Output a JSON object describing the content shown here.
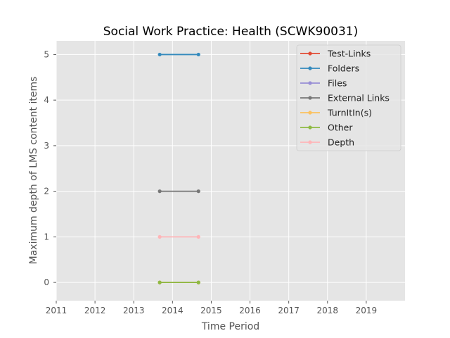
{
  "chart_data": {
    "type": "line",
    "title": "Social Work Practice: Health (SCWK90031)",
    "xlabel": "Time Period",
    "ylabel": "Maximum depth of LMS content items",
    "x_ticks": [
      "2011",
      "2012",
      "2013",
      "2014",
      "2015",
      "2016",
      "2017",
      "2018",
      "2019"
    ],
    "y_ticks": [
      "0",
      "1",
      "2",
      "3",
      "4",
      "5"
    ],
    "xlim": [
      2011.0,
      2020.0
    ],
    "ylim": [
      -0.4,
      5.3
    ],
    "grid": true,
    "legend_position": "top-right",
    "x": [
      2013.67,
      2014.67
    ],
    "series": [
      {
        "name": "Test-Links",
        "color": "#E24A33",
        "values": [
          0,
          0
        ]
      },
      {
        "name": "Folders",
        "color": "#348ABD",
        "values": [
          5,
          5
        ]
      },
      {
        "name": "Files",
        "color": "#988ED5",
        "values": [
          0,
          0
        ]
      },
      {
        "name": "External Links",
        "color": "#777777",
        "values": [
          2,
          2
        ]
      },
      {
        "name": "TurnItIn(s)",
        "color": "#FBC15E",
        "values": [
          0,
          0
        ]
      },
      {
        "name": "Other",
        "color": "#8EBA42",
        "values": [
          0,
          0
        ]
      },
      {
        "name": "Depth",
        "color": "#FFB5B8",
        "values": [
          1,
          1
        ]
      }
    ]
  }
}
